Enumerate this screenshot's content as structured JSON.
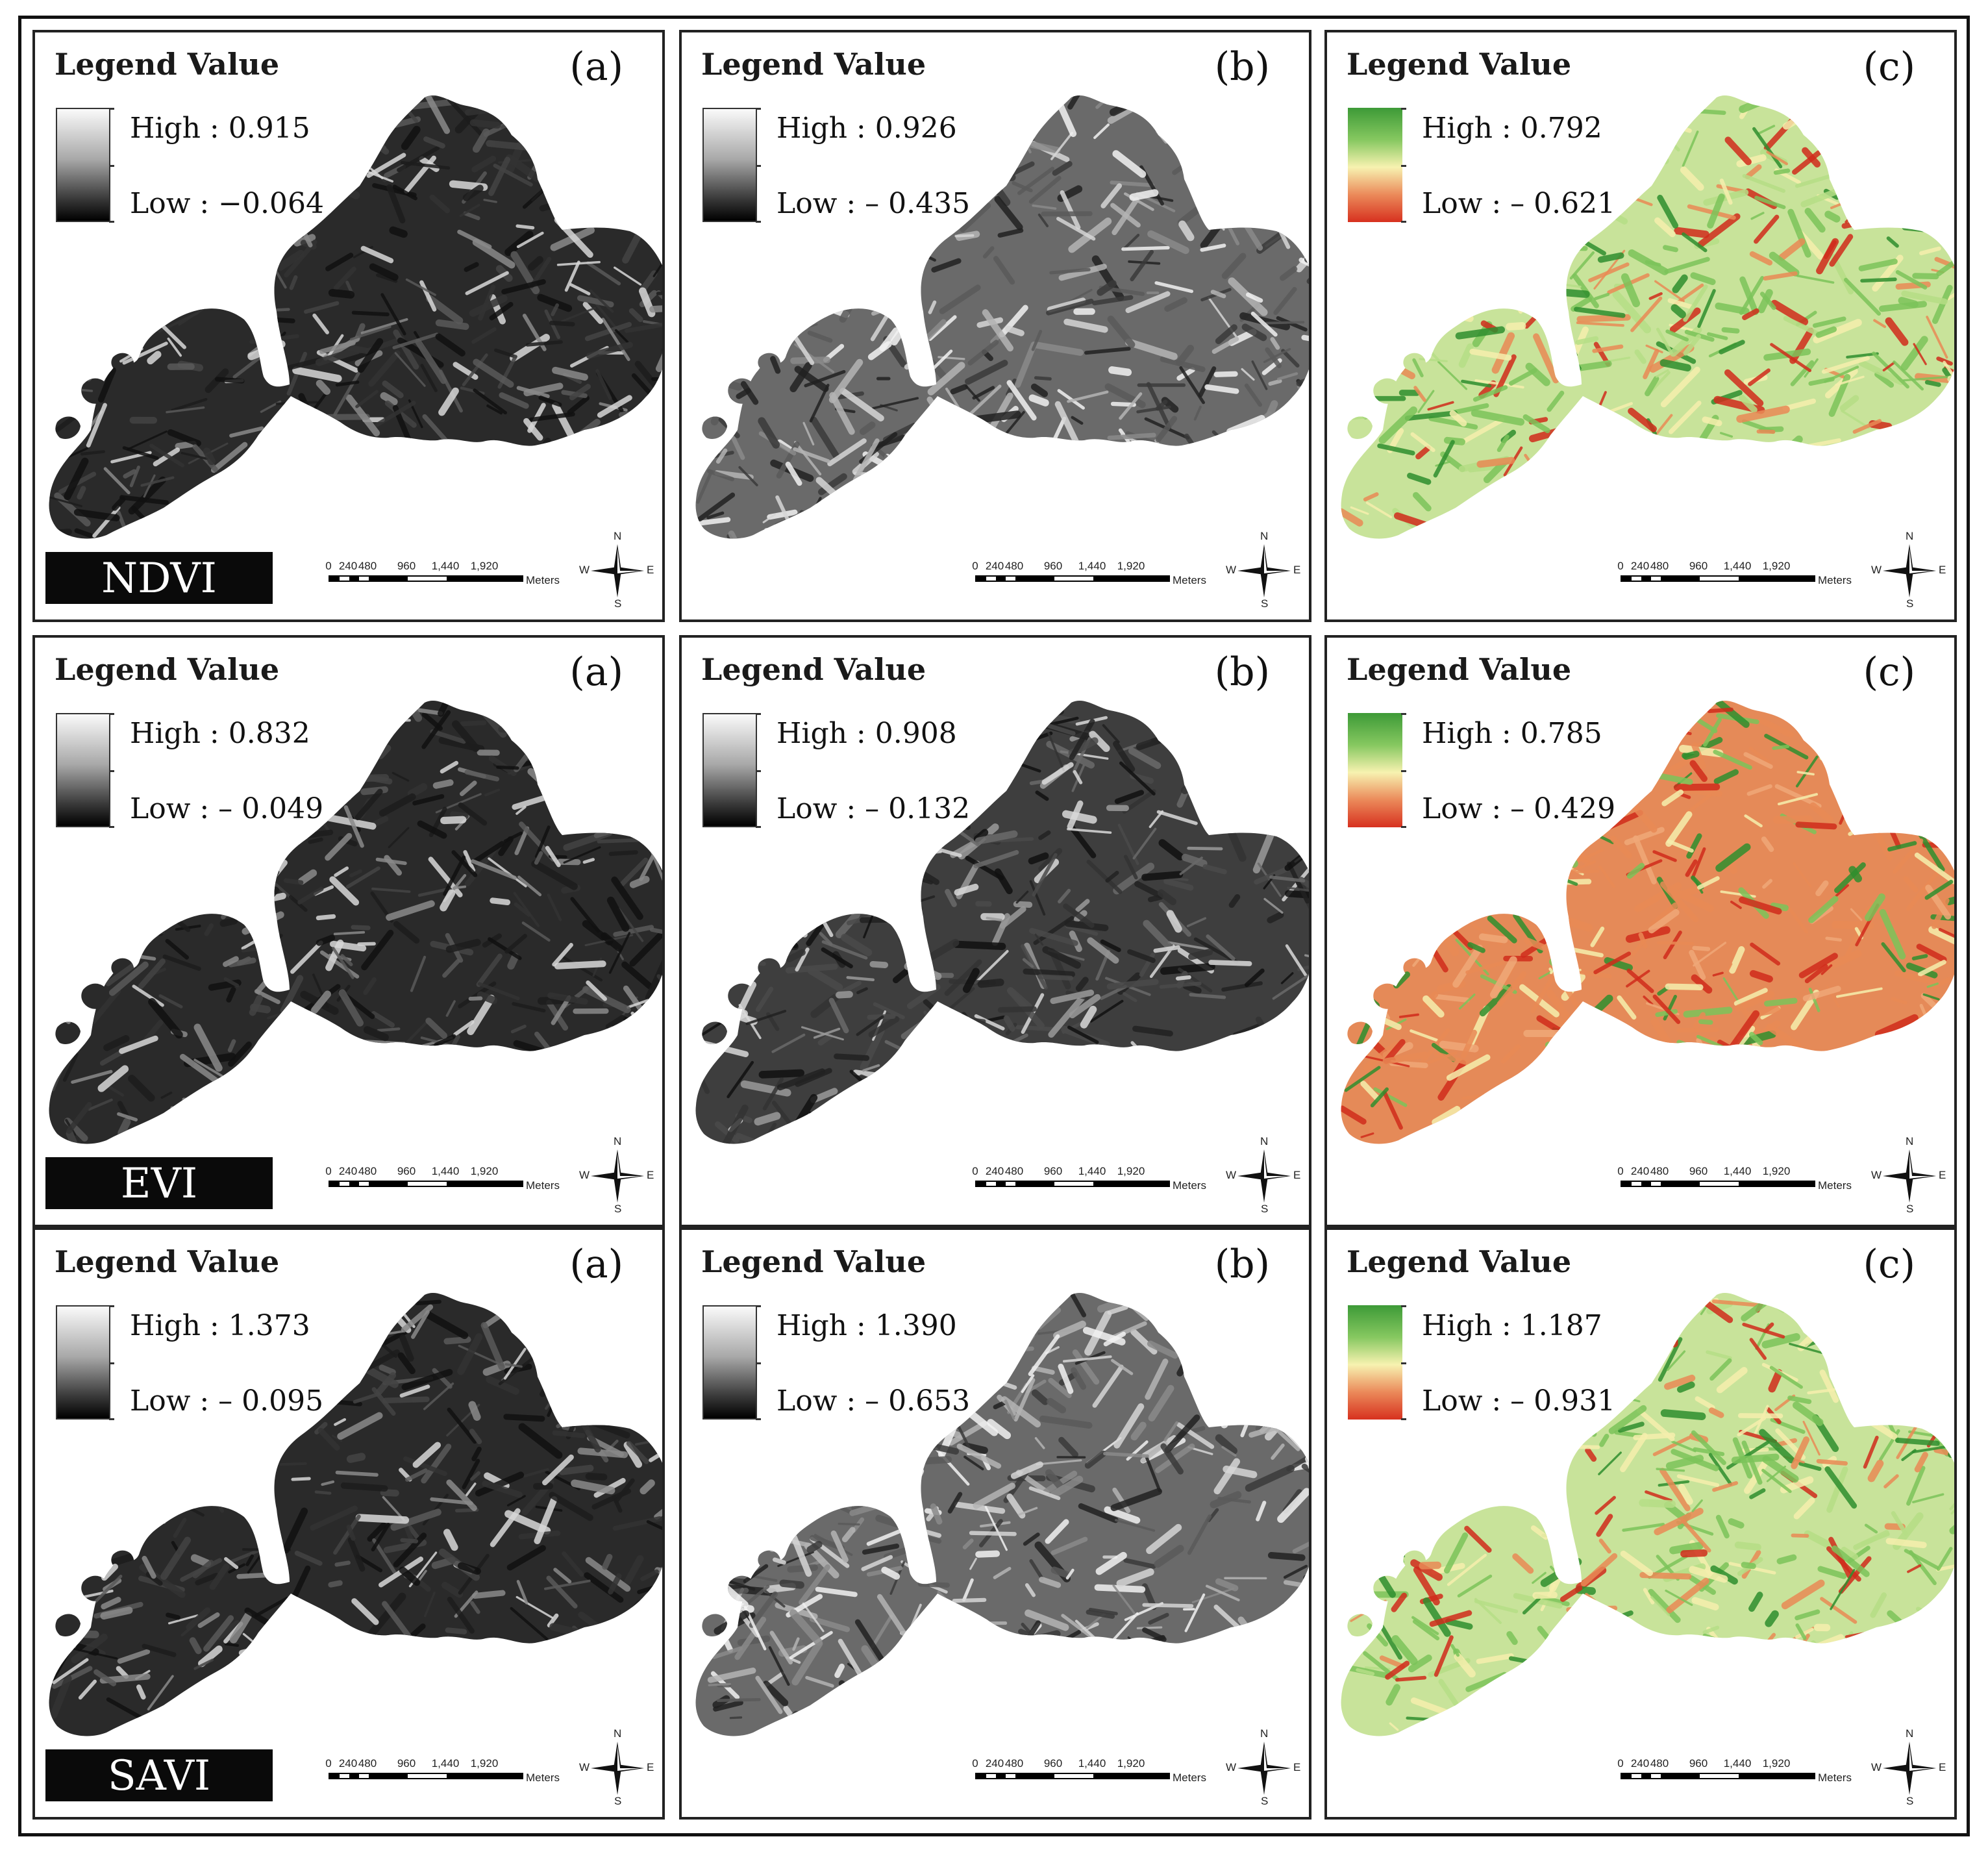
{
  "rows": [
    {
      "index_label": "NDVI",
      "panels": [
        {
          "letter": "(a)",
          "legend_title": "Legend Value",
          "high": "High : 0.915",
          "low": "Low : −0.064",
          "palette": "gray",
          "tone": "dark"
        },
        {
          "letter": "(b)",
          "legend_title": "Legend Value",
          "high": "High : 0.926",
          "low": "Low : – 0.435",
          "palette": "gray",
          "tone": "mid"
        },
        {
          "letter": "(c)",
          "legend_title": "Legend Value",
          "high": "High : 0.792",
          "low": "Low : – 0.621",
          "palette": "color",
          "tone": "green"
        }
      ]
    },
    {
      "index_label": "EVI",
      "panels": [
        {
          "letter": "(a)",
          "legend_title": "Legend Value",
          "high": "High : 0.832",
          "low": "Low : – 0.049",
          "palette": "gray",
          "tone": "dark"
        },
        {
          "letter": "(b)",
          "legend_title": "Legend Value",
          "high": "High : 0.908",
          "low": "Low : – 0.132",
          "palette": "gray",
          "tone": "darkmid"
        },
        {
          "letter": "(c)",
          "legend_title": "Legend Value",
          "high": "High : 0.785",
          "low": "Low : – 0.429",
          "palette": "color",
          "tone": "red"
        }
      ]
    },
    {
      "index_label": "SAVI",
      "panels": [
        {
          "letter": "(a)",
          "legend_title": "Legend Value",
          "high": "High : 1.373",
          "low": "Low : – 0.095",
          "palette": "gray",
          "tone": "dark"
        },
        {
          "letter": "(b)",
          "legend_title": "Legend Value",
          "high": "High : 1.390",
          "low": "Low : – 0.653",
          "palette": "gray",
          "tone": "mid"
        },
        {
          "letter": "(c)",
          "legend_title": "Legend Value",
          "high": "High : 1.187",
          "low": "Low : – 0.931",
          "palette": "color",
          "tone": "green"
        }
      ]
    }
  ],
  "scalebar": {
    "ticks": [
      "0",
      "240",
      "480",
      "960",
      "1,440",
      "1,920"
    ],
    "unit": "Meters"
  },
  "compass": {
    "n": "N",
    "s": "S",
    "e": "E",
    "w": "W"
  },
  "colors": {
    "green_dark": "#2f8f2e",
    "green": "#7cc45a",
    "yellow": "#f6efad",
    "orange": "#e98a55",
    "red": "#d12c1c"
  }
}
